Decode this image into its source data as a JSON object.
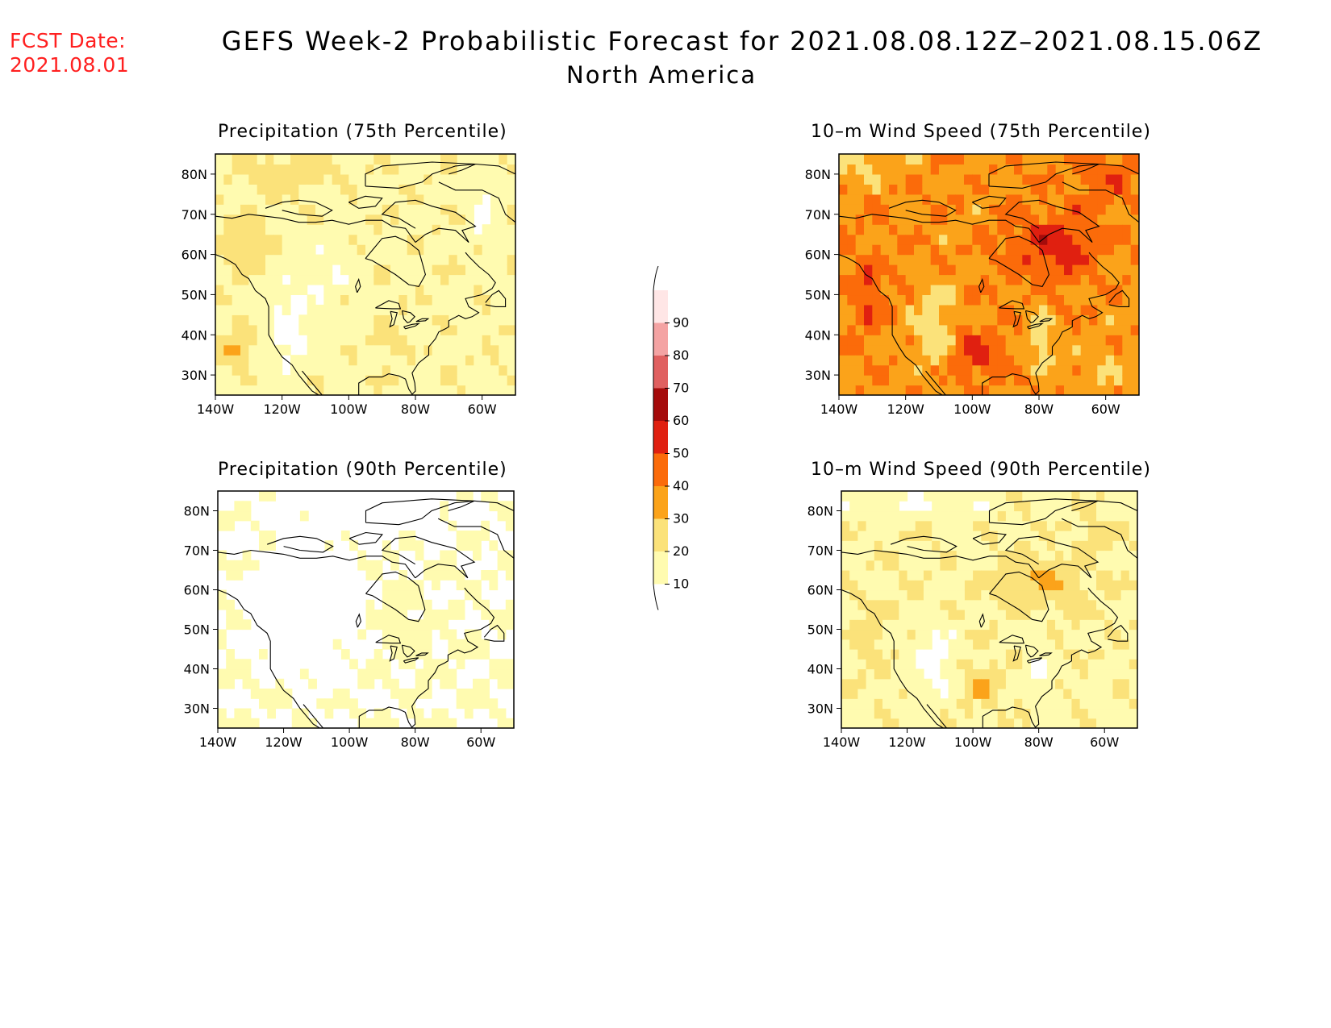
{
  "header": {
    "fcst_label": "FCST Date:",
    "fcst_date": "2021.08.01",
    "title": "GEFS Week-2 Probabilistic Forecast for 2021.08.08.12Z–2021.08.15.06Z",
    "subtitle": "North America"
  },
  "panels": [
    {
      "id": "p75",
      "title": "Precipitation (75th Percentile)",
      "field": "precip75"
    },
    {
      "id": "p90",
      "title": "Precipitation (90th Percentile)",
      "field": "precip90"
    },
    {
      "id": "w75",
      "title": "10–m Wind Speed (75th Percentile)",
      "field": "wind75"
    },
    {
      "id": "w90",
      "title": "10–m Wind Speed (90th Percentile)",
      "field": "wind90"
    }
  ],
  "axes": {
    "lon_ticks": [
      "140W",
      "120W",
      "100W",
      "80W",
      "60W"
    ],
    "lat_ticks": [
      "80N",
      "70N",
      "60N",
      "50N",
      "40N",
      "30N"
    ]
  },
  "colorbar": {
    "levels": [
      "10",
      "20",
      "30",
      "40",
      "50",
      "60",
      "70",
      "80",
      "90"
    ],
    "colors": [
      "#fffbb0",
      "#fbe27a",
      "#fba31a",
      "#fb6b0a",
      "#e02010",
      "#a50b0b",
      "#e06060",
      "#f4a3a3",
      "#ffe6e6"
    ]
  },
  "chart_data": [
    {
      "type": "heatmap",
      "title": "Precipitation (75th Percentile)",
      "x_range": [
        -140,
        -50
      ],
      "y_range": [
        25,
        85
      ],
      "levels": [
        10,
        20,
        30,
        40,
        50,
        60,
        70,
        80,
        90
      ]
    },
    {
      "type": "heatmap",
      "title": "Precipitation (90th Percentile)",
      "x_range": [
        -140,
        -50
      ],
      "y_range": [
        25,
        85
      ],
      "levels": [
        10,
        20,
        30,
        40,
        50,
        60,
        70,
        80,
        90
      ]
    },
    {
      "type": "heatmap",
      "title": "10–m Wind Speed (75th Percentile)",
      "x_range": [
        -140,
        -50
      ],
      "y_range": [
        25,
        85
      ],
      "levels": [
        10,
        20,
        30,
        40,
        50,
        60,
        70,
        80,
        90
      ]
    },
    {
      "type": "heatmap",
      "title": "10–m Wind Speed (90th Percentile)",
      "x_range": [
        -140,
        -50
      ],
      "y_range": [
        25,
        85
      ],
      "levels": [
        10,
        20,
        30,
        40,
        50,
        60,
        70,
        80,
        90
      ]
    }
  ]
}
